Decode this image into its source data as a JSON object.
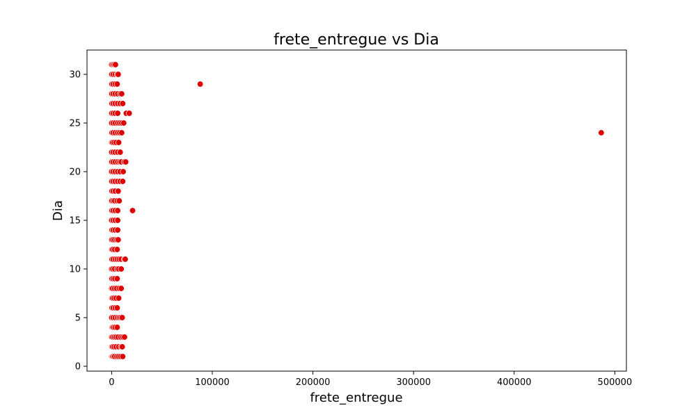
{
  "chart_data": {
    "type": "scatter",
    "title": "frete_entregue vs Dia",
    "xlabel": "frete_entregue",
    "ylabel": "Dia",
    "xlim": [
      -24500,
      511500
    ],
    "ylim": [
      -0.5,
      32.5
    ],
    "xticks": [
      0,
      100000,
      200000,
      300000,
      400000,
      500000
    ],
    "yticks": [
      0,
      5,
      10,
      15,
      20,
      25,
      30
    ],
    "xtick_labels": [
      "0",
      "100000",
      "200000",
      "300000",
      "400000",
      "500000"
    ],
    "ytick_labels": [
      "0",
      "5",
      "10",
      "15",
      "20",
      "25",
      "30"
    ],
    "grid": false,
    "legend": "none",
    "marker_color": "#e00000",
    "marker_edge": "#ffffff",
    "series": [
      {
        "points": [
          [
            100,
            1
          ],
          [
            800,
            1
          ],
          [
            1800,
            1
          ],
          [
            3000,
            1
          ],
          [
            5200,
            1
          ],
          [
            7000,
            1
          ],
          [
            9000,
            1
          ],
          [
            11000,
            1
          ],
          [
            200,
            2
          ],
          [
            1000,
            2
          ],
          [
            2500,
            2
          ],
          [
            4500,
            2
          ],
          [
            7000,
            2
          ],
          [
            9500,
            2
          ],
          [
            10500,
            2
          ],
          [
            100,
            3
          ],
          [
            1200,
            3
          ],
          [
            2800,
            3
          ],
          [
            4500,
            3
          ],
          [
            6500,
            3
          ],
          [
            9000,
            3
          ],
          [
            11000,
            3
          ],
          [
            12800,
            3
          ],
          [
            300,
            4
          ],
          [
            1000,
            4
          ],
          [
            2000,
            4
          ],
          [
            3500,
            4
          ],
          [
            5500,
            4
          ],
          [
            0,
            5
          ],
          [
            1500,
            5
          ],
          [
            3500,
            5
          ],
          [
            5800,
            5
          ],
          [
            7500,
            5
          ],
          [
            9000,
            5
          ],
          [
            10500,
            5
          ],
          [
            300,
            6
          ],
          [
            1500,
            6
          ],
          [
            3500,
            6
          ],
          [
            5500,
            6
          ],
          [
            200,
            7
          ],
          [
            1000,
            7
          ],
          [
            2500,
            7
          ],
          [
            4500,
            7
          ],
          [
            7000,
            7
          ],
          [
            0,
            8
          ],
          [
            1000,
            8
          ],
          [
            3000,
            8
          ],
          [
            5000,
            8
          ],
          [
            7500,
            8
          ],
          [
            9500,
            8
          ],
          [
            200,
            9
          ],
          [
            1500,
            9
          ],
          [
            3200,
            9
          ],
          [
            5500,
            9
          ],
          [
            0,
            10
          ],
          [
            1200,
            10
          ],
          [
            3000,
            10
          ],
          [
            5500,
            10
          ],
          [
            7000,
            10
          ],
          [
            9500,
            10
          ],
          [
            300,
            11
          ],
          [
            1500,
            11
          ],
          [
            3500,
            11
          ],
          [
            5500,
            11
          ],
          [
            7500,
            11
          ],
          [
            9500,
            11
          ],
          [
            12500,
            11
          ],
          [
            13500,
            11
          ],
          [
            200,
            12
          ],
          [
            1200,
            12
          ],
          [
            3000,
            12
          ],
          [
            5500,
            12
          ],
          [
            100,
            13
          ],
          [
            1300,
            13
          ],
          [
            3000,
            13
          ],
          [
            5000,
            13
          ],
          [
            6500,
            13
          ],
          [
            300,
            14
          ],
          [
            1500,
            14
          ],
          [
            3500,
            14
          ],
          [
            6000,
            14
          ],
          [
            0,
            15
          ],
          [
            1500,
            15
          ],
          [
            3500,
            15
          ],
          [
            6000,
            15
          ],
          [
            200,
            16
          ],
          [
            1500,
            16
          ],
          [
            3500,
            16
          ],
          [
            6000,
            16
          ],
          [
            20800,
            16
          ],
          [
            100,
            17
          ],
          [
            1500,
            17
          ],
          [
            3000,
            17
          ],
          [
            5500,
            17
          ],
          [
            7500,
            17
          ],
          [
            200,
            18
          ],
          [
            1500,
            18
          ],
          [
            3500,
            18
          ],
          [
            6500,
            18
          ],
          [
            100,
            19
          ],
          [
            1500,
            19
          ],
          [
            3500,
            19
          ],
          [
            6000,
            19
          ],
          [
            8500,
            19
          ],
          [
            11000,
            19
          ],
          [
            0,
            20
          ],
          [
            1500,
            20
          ],
          [
            3500,
            20
          ],
          [
            6000,
            20
          ],
          [
            8500,
            20
          ],
          [
            11500,
            20
          ],
          [
            100,
            21
          ],
          [
            1500,
            21
          ],
          [
            3500,
            21
          ],
          [
            6000,
            21
          ],
          [
            8000,
            21
          ],
          [
            9500,
            21
          ],
          [
            12500,
            21
          ],
          [
            14000,
            21
          ],
          [
            0,
            22
          ],
          [
            1500,
            22
          ],
          [
            3500,
            22
          ],
          [
            6000,
            22
          ],
          [
            8500,
            22
          ],
          [
            100,
            23
          ],
          [
            1000,
            23
          ],
          [
            2500,
            23
          ],
          [
            4500,
            23
          ],
          [
            7000,
            23
          ],
          [
            300,
            24
          ],
          [
            1500,
            24
          ],
          [
            3500,
            24
          ],
          [
            6000,
            24
          ],
          [
            8000,
            24
          ],
          [
            10000,
            24
          ],
          [
            486500,
            24
          ],
          [
            0,
            25
          ],
          [
            1500,
            25
          ],
          [
            3500,
            25
          ],
          [
            6000,
            25
          ],
          [
            8000,
            25
          ],
          [
            10000,
            25
          ],
          [
            12000,
            25
          ],
          [
            100,
            26
          ],
          [
            1500,
            26
          ],
          [
            3500,
            26
          ],
          [
            6000,
            26
          ],
          [
            14500,
            26
          ],
          [
            17500,
            26
          ],
          [
            200,
            27
          ],
          [
            1500,
            27
          ],
          [
            3500,
            27
          ],
          [
            6000,
            27
          ],
          [
            8500,
            27
          ],
          [
            11000,
            27
          ],
          [
            100,
            28
          ],
          [
            1500,
            28
          ],
          [
            3500,
            28
          ],
          [
            6000,
            28
          ],
          [
            8500,
            28
          ],
          [
            10000,
            28
          ],
          [
            200,
            29
          ],
          [
            1500,
            29
          ],
          [
            3500,
            29
          ],
          [
            5500,
            29
          ],
          [
            88000,
            29
          ],
          [
            100,
            30
          ],
          [
            1500,
            30
          ],
          [
            3500,
            30
          ],
          [
            5500,
            30
          ],
          [
            6500,
            30
          ],
          [
            0,
            31
          ],
          [
            1200,
            31
          ],
          [
            2500,
            31
          ],
          [
            3800,
            31
          ]
        ]
      }
    ]
  }
}
